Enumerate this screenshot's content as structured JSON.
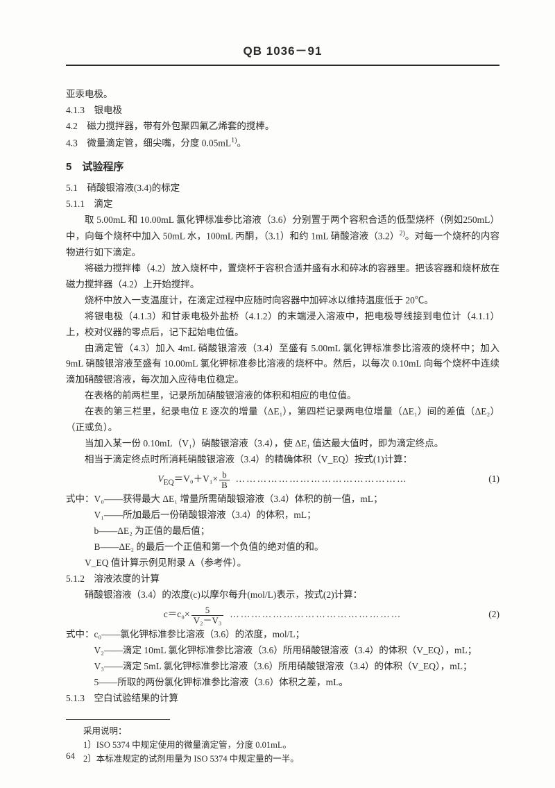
{
  "header": "QB 1036－91",
  "line0": "亚汞电极。",
  "l413": "4.1.3　银电极",
  "l42": "4.2　磁力搅拌器，带有外包聚四氟乙烯套的搅棒。",
  "l43a": "4.3　微量滴定管，细尖嘴，分度 0.05mL",
  "l43sup": "1)",
  "l43b": "。",
  "sec5": "5　试验程序",
  "l51": "5.1　硝酸银溶液(3.4)的标定",
  "l511": "5.1.1　滴定",
  "p1a": "取 5.00mL 和 10.00mL 氯化钾标准参比溶液（3.6）分别置于两个容积合适的低型烧杯（例如250mL）中，向每个烧杯中加入 50mL 水，100mL 丙酮，（3.1）和约 1mL 硝酸溶液（3.2）",
  "p1sup": "2)",
  "p1b": "。对每一个烧杯的内容物进行如下滴定。",
  "p2": "将磁力搅拌棒（4.2）放入烧杯中，置烧杯于容积合适并盛有水和碎冰的容器里。把该容器和烧杯放在磁力搅拌器（4.2）上开始搅拌。",
  "p3": "烧杯中放入一支温度计，在滴定过程中应随时向容器中加碎冰以维持温度低于 20℃。",
  "p4": "将银电极（4.1.3）和甘汞电极外盐桥（4.1.2）的末端浸入溶液中，把电极导线接到电位计（4.1.1）上，校对仪器的零点后，记下起始电位值。",
  "p5": "由滴定管（4.3）加入 4mL 硝酸银溶液（3.4）至盛有 5.00mL 氯化钾标准参比溶液的烧杯中；加入9mL 硝酸银溶液至盛有 10.00mL 氯化钾标准参比溶液的烧杯中。然后，以每次 0.10mL 向每个烧杯中连续滴加硝酸银溶液，每次加入应待电位稳定。",
  "p6": "在表格的前两栏里，记录所加硝酸银溶液的体积和相应的电位值。",
  "p7": "在表的第三栏里，纪录电位 E 逐次的增量（ΔE₁），第四栏记录两电位增量（ΔE₁）间的差值（ΔE₂）（正或负）。",
  "p8": "当加入某一份 0.10mL（V₁）硝酸银溶液（3.4），使 ΔE₁ 值达最大值时，即为滴定终点。",
  "p9": "相当于滴定终点时所消耗硝酸银溶液（3.4）的精确体积（V_EQ）按式(1)计算：",
  "eq1_lhs": "V",
  "eq1_sub": "EQ",
  "eq1_eq": "＝V₀＋V₁×",
  "eq1_num": "b",
  "eq1_den": "B",
  "eq1_dots": "…………………………………………",
  "eq1_no": "(1)",
  "d0": "式中：V₀——获得最大 ΔE₁ 增量所需硝酸银溶液（3.4）体积的前一值，mL；",
  "d1": "V₁——所加最后一份硝酸银溶液（3.4）的体积，mL；",
  "d2": "b——ΔE₂ 为正值的最后值；",
  "d3": "B——ΔE₂ 的最后一个正值和第一个负值的绝对值的和。",
  "d4": "V_EQ 值计算示例见附录 A（参考件）。",
  "l512": "5.1.2　溶液浓度的计算",
  "p10": "硝酸银溶液（3.4）的浓度(c)以摩尔每升(mol/L)表示，按式(2)计算：",
  "eq2_lhs": "c＝c₀×",
  "eq2_num": "5",
  "eq2_den": "V₂－V₃",
  "eq2_dots": "…………………………………………",
  "eq2_no": "(2)",
  "d5": "式中：c₀——氯化钾标准参比溶液（3.6）的浓度，mol/L；",
  "d6": "V₂——滴定 10mL 氯化钾标准参比溶液（3.6）所用硝酸银溶液（3.4）的体积（V_EQ），mL；",
  "d7": "V₃——滴定 5mL 氯化钾标准参比溶液（3.6）所用硝酸银溶液（3.4）的体积（V_EQ），mL；",
  "d8": "5——所取的两份氯化钾标准参比溶液（3.6）体积之差，mL。",
  "l513": "5.1.3　空白试验结果的计算",
  "fn0": "采用说明：",
  "fn1": "1〕ISO 5374 中规定使用的微量滴定管，分度 0.01mL。",
  "fn2": "2〕本标准规定的试剂用量为 ISO 5374 中规定量的一半。",
  "pagenum": "64"
}
